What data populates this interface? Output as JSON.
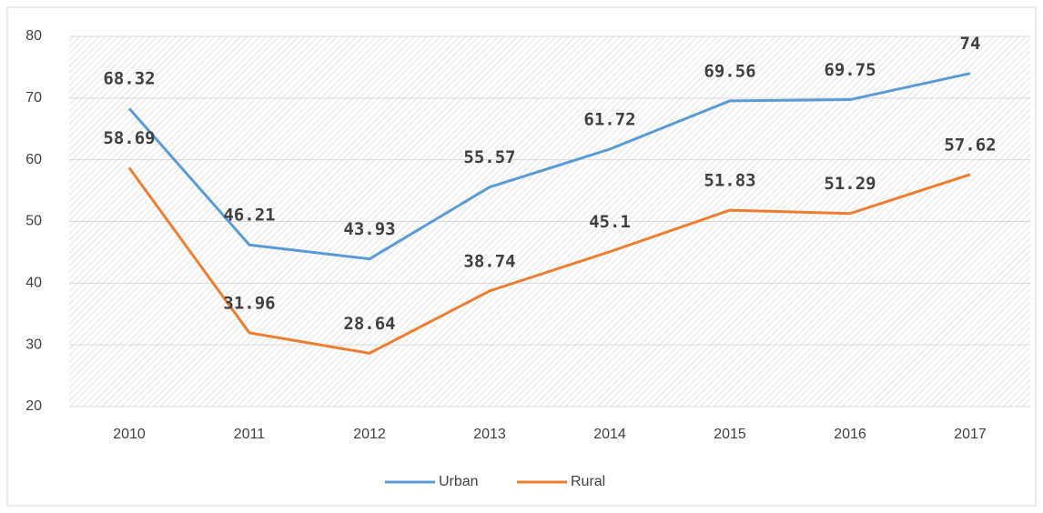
{
  "chart_data": {
    "type": "line",
    "categories": [
      "2010",
      "2011",
      "2012",
      "2013",
      "2014",
      "2015",
      "2016",
      "2017"
    ],
    "series": [
      {
        "name": "Urban",
        "color": "#5b9bd5",
        "values": [
          68.32,
          46.21,
          43.93,
          55.57,
          61.72,
          69.56,
          69.75,
          74
        ]
      },
      {
        "name": "Rural",
        "color": "#ed7d31",
        "values": [
          58.69,
          31.96,
          28.64,
          38.74,
          45.1,
          51.83,
          51.29,
          57.62
        ]
      }
    ],
    "ylim": [
      20,
      80
    ],
    "yticks": [
      20,
      30,
      40,
      50,
      60,
      70,
      80
    ],
    "grid": true,
    "data_labels": true,
    "legend": "bottom"
  }
}
